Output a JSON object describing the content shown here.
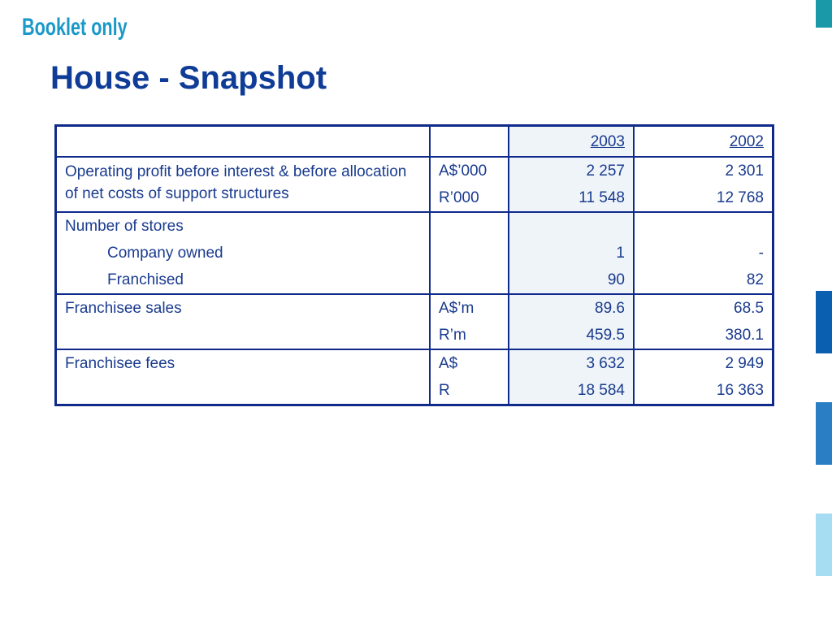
{
  "header": {
    "tag": "Booklet only",
    "title": "House - Snapshot"
  },
  "table": {
    "columns": [
      "",
      "",
      "2003",
      "2002"
    ],
    "rows": [
      {
        "label": "Operating profit before interest & before allocation of net costs of support structures",
        "units": [
          "A$’000",
          "R’000"
        ],
        "y2003": [
          "2 257",
          "11 548"
        ],
        "y2002": [
          "2 301",
          "12 768"
        ]
      },
      {
        "label": "Number of stores",
        "sub": [
          "Company owned",
          "Franchised"
        ],
        "y2003": [
          "1",
          "90"
        ],
        "y2002": [
          "-",
          "82"
        ]
      },
      {
        "label": "Franchisee sales",
        "units": [
          "A$’m",
          "R’m"
        ],
        "y2003": [
          "89.6",
          "459.5"
        ],
        "y2002": [
          "68.5",
          "380.1"
        ]
      },
      {
        "label": "Franchisee fees",
        "units": [
          "A$",
          "R"
        ],
        "y2003": [
          "3 632",
          "18 584"
        ],
        "y2002": [
          "2 949",
          "16 363"
        ]
      }
    ]
  },
  "colors": {
    "title": "#0f3c96",
    "tag": "#1a98c8",
    "border": "#0f2a8a",
    "shade": "#eef4f8",
    "accent_teal": "#1a9aa8",
    "accent_dark": "#0a5fb0",
    "accent_mid": "#2a7fc4",
    "accent_light": "#a6ddf2"
  }
}
